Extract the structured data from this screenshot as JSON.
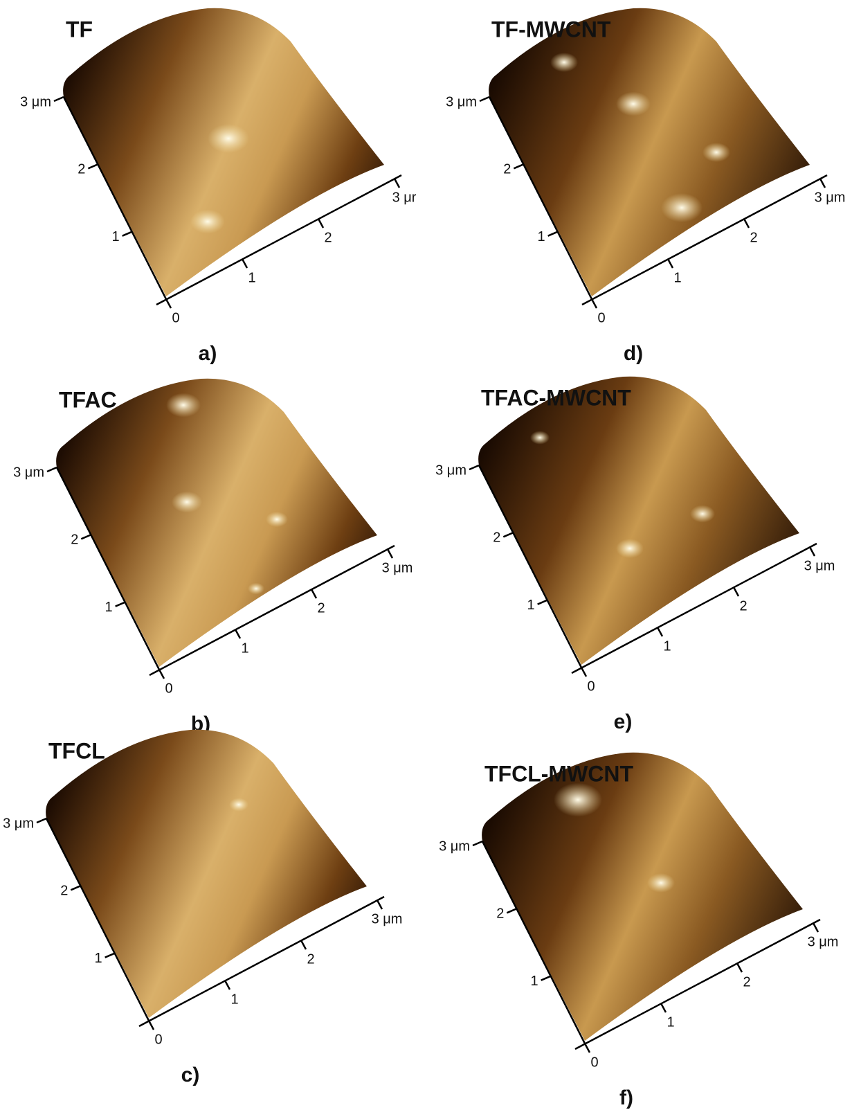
{
  "panels": [
    {
      "title": "TF",
      "label": "a)",
      "left_ticks": [
        "1",
        "2",
        "3 μm"
      ],
      "bottom_ticks": [
        "0",
        "1",
        "2",
        "3 μr"
      ]
    },
    {
      "title": "TF-MWCNT",
      "label": "d)",
      "left_ticks": [
        "1",
        "2",
        "3 μm"
      ],
      "bottom_ticks": [
        "0",
        "1",
        "2",
        "3 μm"
      ]
    },
    {
      "title": "TFAC",
      "label": "b)",
      "left_ticks": [
        "1",
        "2",
        "3 μm"
      ],
      "bottom_ticks": [
        "0",
        "1",
        "2",
        "3 μm"
      ]
    },
    {
      "title": "TFAC-MWCNT",
      "label": "e)",
      "left_ticks": [
        "1",
        "2",
        "3 μm"
      ],
      "bottom_ticks": [
        "0",
        "1",
        "2",
        "3 μm"
      ]
    },
    {
      "title": "TFCL",
      "label": "c)",
      "left_ticks": [
        "1",
        "2",
        "3 μm"
      ],
      "bottom_ticks": [
        "0",
        "1",
        "2",
        "3 μm"
      ]
    },
    {
      "title": "TFCL-MWCNT",
      "label": "f)",
      "left_ticks": [
        "1",
        "2",
        "3 μm"
      ],
      "bottom_ticks": [
        "0",
        "1",
        "2",
        "3 μm"
      ]
    }
  ]
}
